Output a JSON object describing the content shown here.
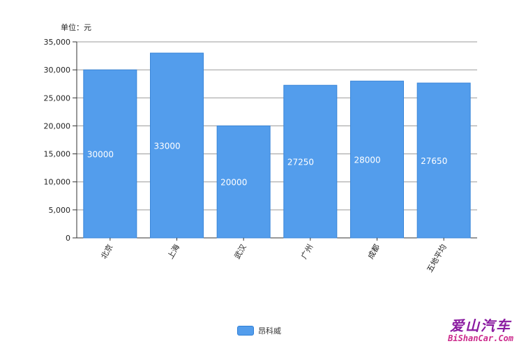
{
  "unit_label": "单位：元",
  "legend": {
    "label": "昂科威",
    "color": "#539dec"
  },
  "watermark": {
    "line1": "爱山汽车",
    "line2": "BiShanCar.Com"
  },
  "chart_data": {
    "type": "bar",
    "categories": [
      "北京",
      "上海",
      "武汉",
      "广州",
      "成都",
      "五地平均"
    ],
    "series": [
      {
        "name": "昂科威",
        "values": [
          30000,
          33000,
          20000,
          27250,
          28000,
          27650
        ],
        "color": "#539dec"
      }
    ],
    "value_labels": [
      "30000",
      "33000",
      "20000",
      "27250",
      "28000",
      "27650"
    ],
    "ylim": [
      0,
      35000
    ],
    "yticks": [
      0,
      5000,
      10000,
      15000,
      20000,
      25000,
      30000,
      35000
    ],
    "ytick_labels": [
      "0",
      "5,000",
      "10,000",
      "15,000",
      "20,000",
      "25,000",
      "30,000",
      "35,000"
    ],
    "grid": true,
    "legend_position": "bottom-center"
  }
}
